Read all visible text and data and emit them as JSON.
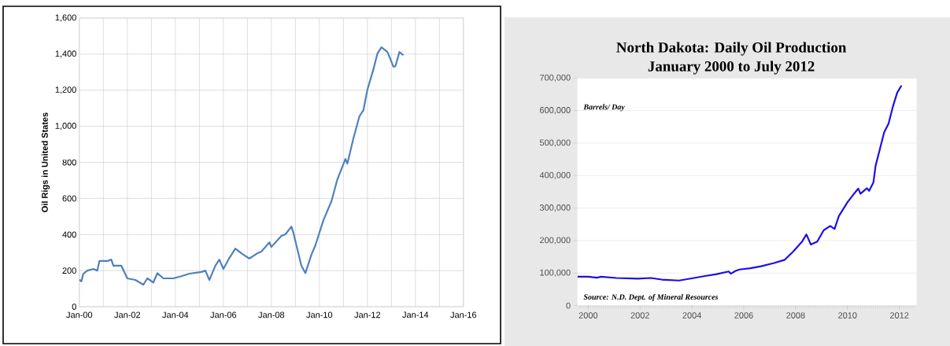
{
  "chart_data": [
    {
      "type": "line",
      "ylabel": "Oil Rigs in United States",
      "xlim": [
        "2000-01",
        "2016-01"
      ],
      "xticks": [
        {
          "value": "2000-01",
          "label": "Jan-00"
        },
        {
          "value": "2001-01",
          "label": null
        },
        {
          "value": "2002-01",
          "label": "Jan-02"
        },
        {
          "value": "2003-01",
          "label": null
        },
        {
          "value": "2004-01",
          "label": "Jan-04"
        },
        {
          "value": "2005-01",
          "label": null
        },
        {
          "value": "2006-01",
          "label": "Jan-06"
        },
        {
          "value": "2007-01",
          "label": null
        },
        {
          "value": "2008-01",
          "label": "Jan-08"
        },
        {
          "value": "2009-01",
          "label": null
        },
        {
          "value": "2010-01",
          "label": "Jan-10"
        },
        {
          "value": "2011-01",
          "label": null
        },
        {
          "value": "2012-01",
          "label": "Jan-12"
        },
        {
          "value": "2013-01",
          "label": null
        },
        {
          "value": "2014-01",
          "label": "Jan-14"
        },
        {
          "value": "2015-01",
          "label": null
        },
        {
          "value": "2016-01",
          "label": "Jan-16"
        }
      ],
      "ylim": [
        0,
        1600
      ],
      "yticks": [
        0,
        200,
        400,
        600,
        800,
        {
          "value": 1000,
          "label": "1,000"
        },
        {
          "value": 1200,
          "label": "1,200"
        },
        {
          "value": 1400,
          "label": "1,400"
        },
        {
          "value": 1600,
          "label": "1,600"
        }
      ],
      "grid": true,
      "color": "#4f81bd",
      "x": [
        "2000-01",
        "2000-02",
        "2000-03",
        "2000-05",
        "2000-08",
        "2000-10",
        "2000-11",
        "2001-03",
        "2001-05",
        "2001-06",
        "2001-10",
        "2002-01",
        "2002-05",
        "2002-09",
        "2002-11",
        "2003-02",
        "2003-04",
        "2003-07",
        "2003-12",
        "2004-04",
        "2004-08",
        "2005-02",
        "2005-04",
        "2005-06",
        "2005-09",
        "2005-11",
        "2006-01",
        "2006-04",
        "2006-07",
        "2006-09",
        "2006-11",
        "2007-02",
        "2007-06",
        "2007-08",
        "2007-12",
        "2008-01",
        "2008-06",
        "2008-08",
        "2008-11",
        "2008-12",
        "2009-04",
        "2009-06",
        "2009-09",
        "2009-11",
        "2010-01",
        "2010-03",
        "2010-07",
        "2010-10",
        "2011-02",
        "2011-03",
        "2011-06",
        "2011-09",
        "2011-11",
        "2012-01",
        "2012-04",
        "2012-06",
        "2012-08",
        "2012-11",
        "2012-12",
        "2013-02",
        "2013-03",
        "2013-05",
        "2013-07"
      ],
      "values": [
        150,
        140,
        183,
        200,
        209,
        200,
        253,
        253,
        261,
        227,
        227,
        157,
        148,
        122,
        157,
        134,
        186,
        157,
        157,
        169,
        183,
        192,
        200,
        148,
        227,
        261,
        209,
        270,
        322,
        305,
        288,
        267,
        296,
        305,
        357,
        331,
        392,
        401,
        444,
        410,
        227,
        186,
        288,
        340,
        410,
        479,
        584,
        706,
        819,
        793,
        933,
        1055,
        1089,
        1203,
        1316,
        1403,
        1438,
        1412,
        1386,
        1330,
        1333,
        1412,
        1394
      ]
    },
    {
      "type": "line",
      "title": "North Dakota: Daily Oil Production",
      "subtitle": "January 2000 to July 2012",
      "ylabel": "Barrels/ Day",
      "annotations": [
        "Source: N.D. Dept. of Mineral Resources"
      ],
      "xlim": [
        "1999-08",
        "2012-09"
      ],
      "xticks": [
        {
          "value": "2000-01",
          "label": "2000"
        },
        {
          "value": "2002-01",
          "label": "2002"
        },
        {
          "value": "2004-01",
          "label": "2004"
        },
        {
          "value": "2006-01",
          "label": "2006"
        },
        {
          "value": "2008-01",
          "label": "2008"
        },
        {
          "value": "2010-01",
          "label": "2010"
        },
        {
          "value": "2012-01",
          "label": "2012"
        }
      ],
      "ylim": [
        0,
        700000
      ],
      "yticks": [
        0,
        {
          "value": 100000,
          "label": "100,000"
        },
        {
          "value": 200000,
          "label": "200,000"
        },
        {
          "value": 300000,
          "label": "300,000"
        },
        {
          "value": 400000,
          "label": "400,000"
        },
        {
          "value": 500000,
          "label": "500,000"
        },
        {
          "value": 600000,
          "label": "600,000"
        },
        {
          "value": 700000,
          "label": "700,000"
        }
      ],
      "grid": "y",
      "color": "#1c0fe6",
      "x": [
        "1999-08",
        "2000-01",
        "2000-05",
        "2000-07",
        "2001-02",
        "2001-12",
        "2002-06",
        "2002-11",
        "2003-07",
        "2004-02",
        "2004-07",
        "2004-12",
        "2005-06",
        "2005-07",
        "2005-09",
        "2005-11",
        "2006-04",
        "2006-09",
        "2007-03",
        "2007-08",
        "2007-12",
        "2008-04",
        "2008-06",
        "2008-08",
        "2008-11",
        "2009-02",
        "2009-05",
        "2009-07",
        "2009-09",
        "2010-01",
        "2010-04",
        "2010-06",
        "2010-07",
        "2010-10",
        "2010-11",
        "2011-01",
        "2011-02",
        "2011-04",
        "2011-06",
        "2011-08",
        "2011-10",
        "2011-12",
        "2012-02"
      ],
      "values": [
        89000,
        89000,
        86000,
        89000,
        85000,
        83000,
        85000,
        80000,
        77000,
        85000,
        91000,
        96000,
        105000,
        98000,
        106000,
        111000,
        115000,
        121000,
        131000,
        141000,
        167000,
        197000,
        219000,
        188000,
        197000,
        232000,
        245000,
        236000,
        275000,
        318000,
        344000,
        360000,
        344000,
        361000,
        353000,
        379000,
        430000,
        482000,
        534000,
        560000,
        612000,
        655000,
        677000
      ]
    }
  ]
}
